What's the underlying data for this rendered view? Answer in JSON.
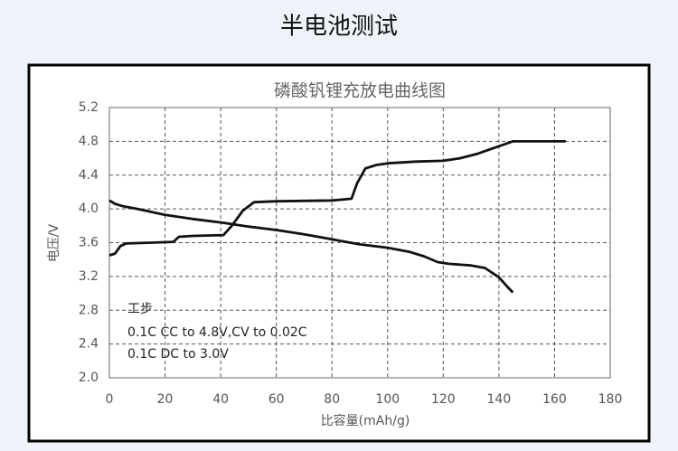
{
  "chart_data": {
    "type": "line",
    "header": "半电池测试",
    "title": "磷酸钒锂充放电曲线图",
    "x_label": "比容量(mAh/g)",
    "y_label": "电压/V",
    "annotations": [
      "工步",
      "0.1C CC to 4.8V,CV to 0.02C",
      "0.1C DC to 3.0V"
    ],
    "xlim": [
      0,
      180
    ],
    "xticks": [
      0,
      20,
      40,
      60,
      80,
      100,
      120,
      140,
      160,
      180
    ],
    "ylim": [
      2.0,
      5.2
    ],
    "yticks": [
      {
        "value": 2.0,
        "label": "2.0"
      },
      2.4,
      2.8,
      3.2,
      3.6,
      {
        "value": 4.0,
        "label": "4.0"
      },
      4.4,
      4.8,
      5.2
    ],
    "grid": true,
    "series": [
      {
        "color": "#111111",
        "x": [
          0,
          2,
          4,
          6,
          15,
          23,
          25,
          30,
          41,
          44,
          48,
          52,
          60,
          80,
          87,
          89,
          92,
          96,
          100,
          110,
          120,
          126,
          132,
          138,
          145,
          155,
          164
        ],
        "values": [
          3.45,
          3.47,
          3.56,
          3.59,
          3.6,
          3.61,
          3.67,
          3.68,
          3.69,
          3.8,
          3.98,
          4.08,
          4.09,
          4.1,
          4.12,
          4.3,
          4.48,
          4.52,
          4.54,
          4.56,
          4.57,
          4.6,
          4.65,
          4.72,
          4.8,
          4.8,
          4.8
        ]
      },
      {
        "color": "#111111",
        "x": [
          0,
          2,
          5,
          10,
          20,
          30,
          40,
          50,
          60,
          70,
          80,
          90,
          100,
          108,
          113,
          118,
          122,
          130,
          135,
          140,
          143,
          145
        ],
        "values": [
          4.1,
          4.06,
          4.03,
          4.0,
          3.93,
          3.88,
          3.84,
          3.79,
          3.75,
          3.7,
          3.64,
          3.58,
          3.54,
          3.49,
          3.44,
          3.37,
          3.35,
          3.33,
          3.3,
          3.19,
          3.08,
          3.01
        ]
      }
    ]
  }
}
